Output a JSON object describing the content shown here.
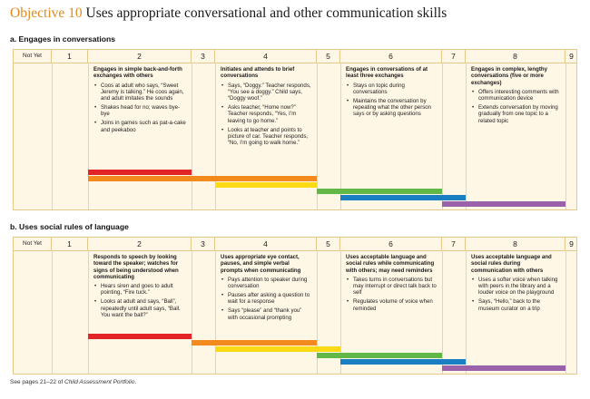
{
  "page": {
    "objective_label": "Objective 10",
    "objective_title": "Uses appropriate conversational and other communication skills",
    "footer_prefix": "See pages 21–22 of ",
    "footer_italic": "Child Assessment Portfolio",
    "footer_suffix": "."
  },
  "columns": [
    "Not Yet",
    "1",
    "2",
    "3",
    "4",
    "5",
    "6",
    "7",
    "8",
    "9"
  ],
  "colors": {
    "red": "#e32426",
    "orange": "#f28a1e",
    "yellow": "#fbd914",
    "green": "#62b846",
    "blue": "#1a7fc2",
    "purple": "#9a62aa",
    "cell_bg": "#fff7e6",
    "cell_border": "#e6c98a",
    "accent": "#e08a1e"
  },
  "sections": [
    {
      "heading": "a. Engages in conversations",
      "descriptors": [
        {
          "heading": "Engages in simple back-and-forth exchanges with others",
          "bullets": [
            "Coos at adult who says, “Sweet Jeremy is talking.” He coos again, and adult imitates the sounds",
            "Shakes head for no; waves bye-bye",
            "Joins in games such as pat-a-cake and peekaboo"
          ]
        },
        {
          "heading": "Initiates and attends to brief conversations",
          "bullets": [
            "Says, “Doggy.” Teacher responds, “You see a doggy.” Child says, “Doggy woof.”",
            "Asks teacher, “Home now?” Teacher responds, “Yes, I’m leaving to go home.”",
            "Looks at teacher and points to picture of car. Teacher responds, “No, I’m going to walk home.”"
          ]
        },
        {
          "heading": "Engages in conversations of at least three exchanges",
          "bullets": [
            "Stays on topic during conversations",
            "Maintains the conversation by repeating what the other person says or by asking questions"
          ]
        },
        {
          "heading": "Engages in complex, lengthy conversations (five or more exchanges)",
          "bullets": [
            "Offers interesting comments with communication device",
            "Extends conversation by moving gradually from one topic to a related topic"
          ]
        }
      ],
      "progression": [
        {
          "color": "red",
          "from_col": 2,
          "to_col": 3
        },
        {
          "color": "orange",
          "from_col": 2,
          "to_col": 5
        },
        {
          "color": "yellow",
          "from_col": 4,
          "to_col": 5
        },
        {
          "color": "green",
          "from_col": 5,
          "to_col": 7
        },
        {
          "color": "blue",
          "from_col": 6,
          "to_col": 8
        },
        {
          "color": "purple",
          "from_col": 7,
          "to_col": 9
        }
      ]
    },
    {
      "heading": "b. Uses social rules of language",
      "descriptors": [
        {
          "heading": "Responds to speech by looking toward the speaker; watches for signs of being understood when communicating",
          "bullets": [
            "Hears siren and goes to adult pointing, “Fire tuck.”",
            "Looks at adult and says, “Ball”, repeatedly until adult says, “Ball. You want the ball?”"
          ]
        },
        {
          "heading": "Uses appropriate eye contact, pauses, and simple verbal prompts when communicating",
          "bullets": [
            "Pays attention to speaker during conversation",
            "Pauses after asking a question to wait for a response",
            "Says “please” and “thank you” with occasional prompting"
          ]
        },
        {
          "heading": "Uses acceptable language and social rules while communicating with others; may need reminders",
          "bullets": [
            "Takes turns in conversations but may interrupt or direct talk back to self",
            "Regulates volume of voice when reminded"
          ]
        },
        {
          "heading": "Uses acceptable language and social rules during communication with others",
          "bullets": [
            "Uses a softer voice when talking with peers in the library and a louder voice on the playground",
            "Says, “Hello,” back to the museum curator on a trip"
          ]
        }
      ],
      "progression": [
        {
          "color": "red",
          "from_col": 2,
          "to_col": 3
        },
        {
          "color": "orange",
          "from_col": 3,
          "to_col": 5
        },
        {
          "color": "yellow",
          "from_col": 4,
          "to_col": 6
        },
        {
          "color": "green",
          "from_col": 5,
          "to_col": 7
        },
        {
          "color": "blue",
          "from_col": 6,
          "to_col": 8
        },
        {
          "color": "purple",
          "from_col": 7,
          "to_col": 9
        }
      ]
    }
  ]
}
